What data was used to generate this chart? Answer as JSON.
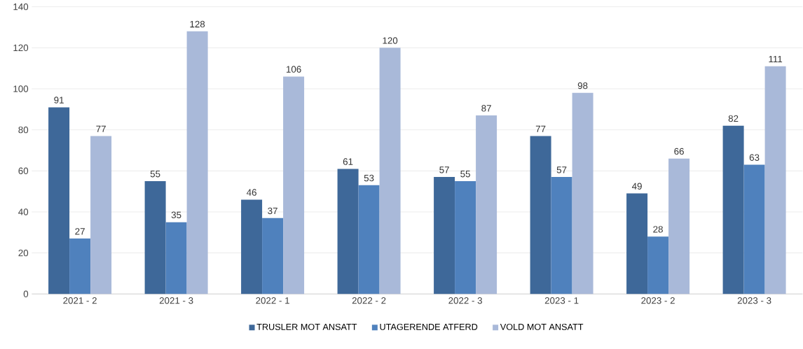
{
  "chart_data": {
    "type": "bar",
    "categories": [
      "2021 - 2",
      "2021 - 3",
      "2022 - 1",
      "2022 - 2",
      "2022 - 3",
      "2023 - 1",
      "2023 - 2",
      "2023 - 3"
    ],
    "series": [
      {
        "name": "TRUSLER MOT ANSATT",
        "color": "#3e6899",
        "values": [
          91,
          55,
          46,
          61,
          57,
          77,
          49,
          82
        ]
      },
      {
        "name": "UTAGERENDE ATFERD",
        "color": "#4f81bd",
        "values": [
          27,
          35,
          37,
          53,
          55,
          57,
          28,
          63
        ]
      },
      {
        "name": "VOLD MOT ANSATT",
        "color": "#a9b9d9",
        "values": [
          77,
          128,
          106,
          120,
          87,
          98,
          66,
          111
        ]
      }
    ],
    "ylim": [
      0,
      140
    ],
    "yticks": [
      0,
      20,
      40,
      60,
      80,
      100,
      120,
      140
    ],
    "grid": "y",
    "legend": "bottom",
    "data_labels": true
  }
}
